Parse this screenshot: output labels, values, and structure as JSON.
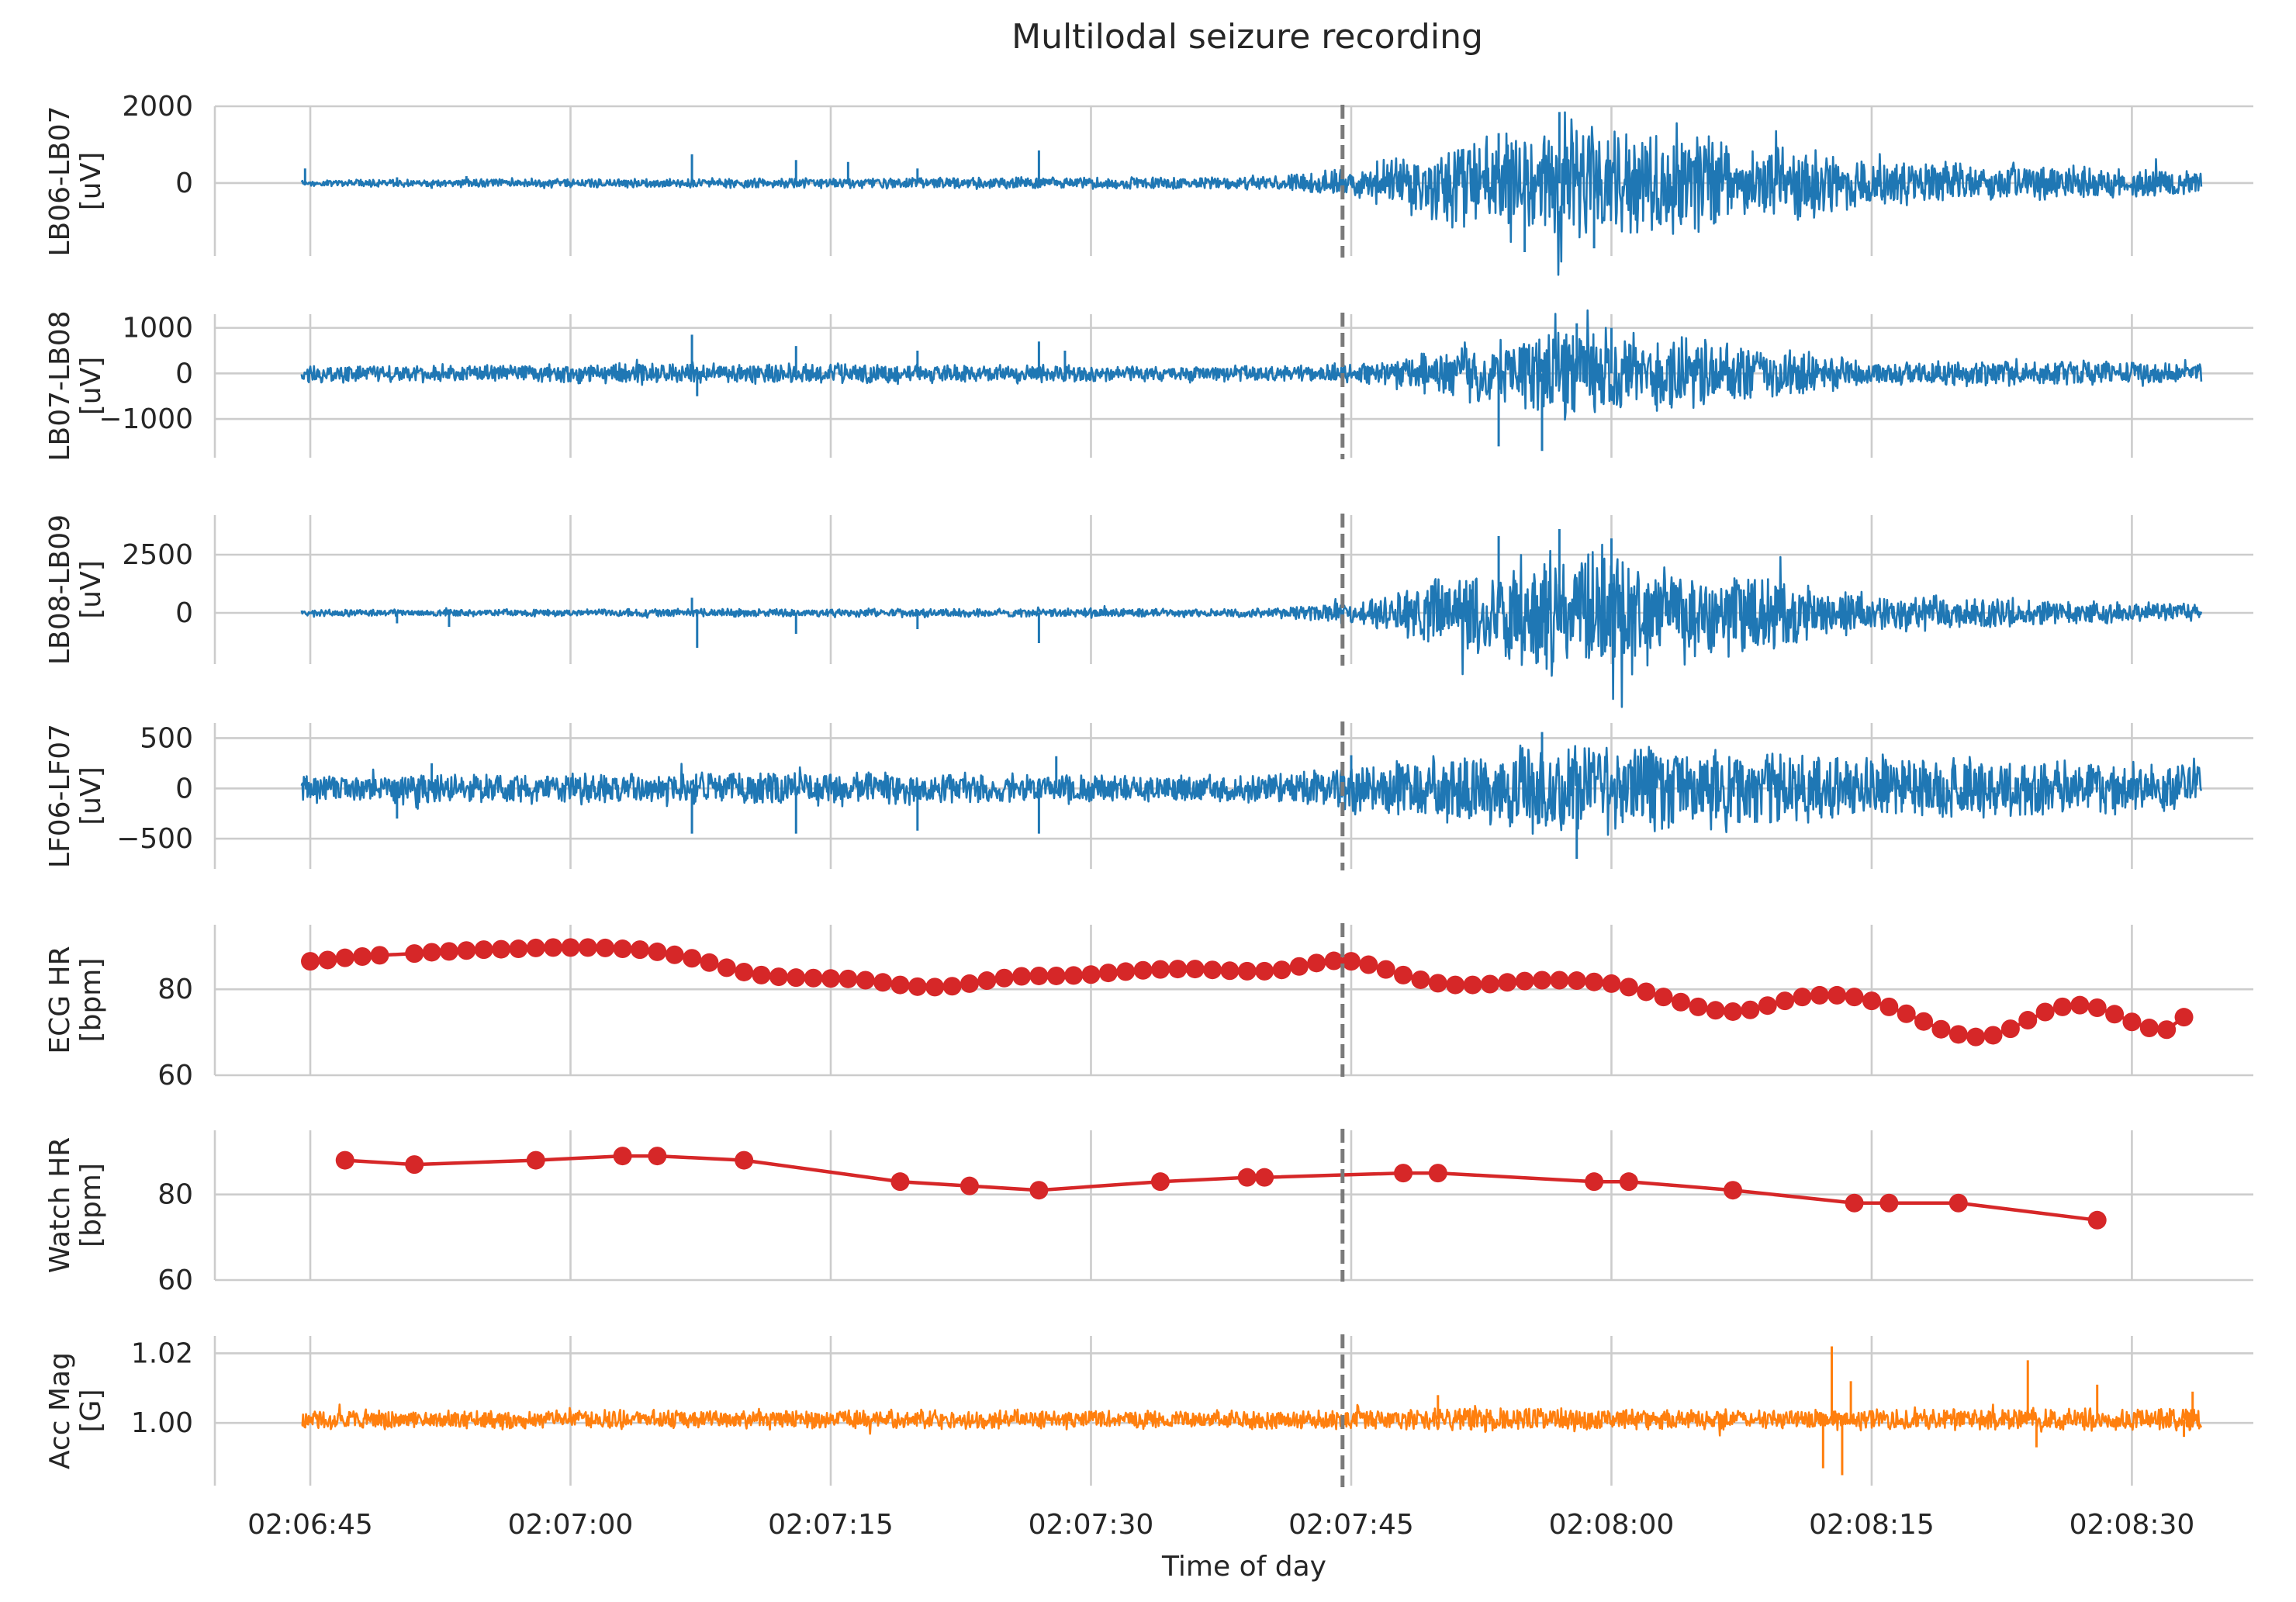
{
  "chart_data": {
    "type": "line",
    "title": "Multilodal seizure recording",
    "xlabel": "Time of day",
    "x_ticks": [
      "02:06:45",
      "02:07:00",
      "02:07:15",
      "02:07:30",
      "02:07:45",
      "02:08:00",
      "02:08:15",
      "02:08:30"
    ],
    "xlim": [
      "02:06:39.5",
      "02:08:37"
    ],
    "onset_time": "02:07:44.5",
    "panels": [
      {
        "name": "LB06-LB07",
        "ylabel": [
          "LB06-LB07",
          "[uV]"
        ],
        "kind": "signal",
        "color": "#1f77b4",
        "ylim": [
          -1900,
          2000
        ],
        "yticks": [
          {
            "value": 2000,
            "label": "2000"
          },
          {
            "value": 0,
            "label": "0"
          }
        ],
        "range": [
          "02:06:44.5",
          "02:08:34"
        ],
        "envelope": [
          [
            "02:06:44.5",
            100
          ],
          [
            "02:07:15",
            150
          ],
          [
            "02:07:40",
            180
          ],
          [
            "02:07:46",
            500
          ],
          [
            "02:07:52",
            1400
          ],
          [
            "02:07:58",
            1800
          ],
          [
            "02:08:05",
            1400
          ],
          [
            "02:08:15",
            700
          ],
          [
            "02:08:34",
            350
          ]
        ],
        "spikes": [
          [
            "02:06:44.7",
            380
          ],
          [
            "02:06:50",
            150
          ],
          [
            "02:06:52",
            -150
          ],
          [
            "02:06:54",
            180
          ],
          [
            "02:07:07",
            750
          ],
          [
            "02:07:13",
            600
          ],
          [
            "02:07:16",
            550
          ],
          [
            "02:07:20",
            380
          ],
          [
            "02:07:27",
            850
          ],
          [
            "02:07:53.5",
            1300
          ],
          [
            "02:07:55",
            -1800
          ],
          [
            "02:07:57",
            1850
          ],
          [
            "02:07:59",
            -1700
          ]
        ]
      },
      {
        "name": "LB07-LB08",
        "ylabel": [
          "LB07-LB08",
          "[uV]"
        ],
        "kind": "signal",
        "color": "#1f77b4",
        "ylim": [
          -1850,
          1300
        ],
        "yticks": [
          {
            "value": 1000,
            "label": "1000"
          },
          {
            "value": 0,
            "label": "0"
          },
          {
            "value": -1000,
            "label": "−1000"
          }
        ],
        "range": [
          "02:06:44.5",
          "02:08:34"
        ],
        "envelope": [
          [
            "02:06:44.5",
            200
          ],
          [
            "02:07:15",
            250
          ],
          [
            "02:07:40",
            180
          ],
          [
            "02:07:46",
            250
          ],
          [
            "02:07:52",
            700
          ],
          [
            "02:07:58",
            1150
          ],
          [
            "02:08:05",
            800
          ],
          [
            "02:08:15",
            300
          ],
          [
            "02:08:34",
            300
          ]
        ],
        "spikes": [
          [
            "02:07:07",
            850
          ],
          [
            "02:07:07.3",
            -500
          ],
          [
            "02:07:13",
            600
          ],
          [
            "02:07:20",
            500
          ],
          [
            "02:07:27",
            700
          ],
          [
            "02:07:28.5",
            500
          ],
          [
            "02:07:53.5",
            -1600
          ],
          [
            "02:07:56",
            -1700
          ],
          [
            "02:07:58",
            1100
          ],
          [
            "02:08:00",
            1000
          ]
        ]
      },
      {
        "name": "LB08-LB09",
        "ylabel": [
          "LB08-LB09",
          "[uV]"
        ],
        "kind": "signal",
        "color": "#1f77b4",
        "ylim": [
          -2200,
          4200
        ],
        "yticks": [
          {
            "value": 2500,
            "label": "2500"
          },
          {
            "value": 0,
            "label": "0"
          }
        ],
        "range": [
          "02:06:44.5",
          "02:08:34"
        ],
        "envelope": [
          [
            "02:06:44.5",
            150
          ],
          [
            "02:07:15",
            200
          ],
          [
            "02:07:40",
            200
          ],
          [
            "02:07:46",
            600
          ],
          [
            "02:07:52",
            2200
          ],
          [
            "02:07:58",
            3200
          ],
          [
            "02:08:05",
            2200
          ],
          [
            "02:08:15",
            900
          ],
          [
            "02:08:34",
            400
          ]
        ],
        "spikes": [
          [
            "02:06:50",
            -450
          ],
          [
            "02:06:53",
            -600
          ],
          [
            "02:07:07",
            650
          ],
          [
            "02:07:07.3",
            -1500
          ],
          [
            "02:07:13",
            -900
          ],
          [
            "02:07:20",
            -700
          ],
          [
            "02:07:27",
            -1300
          ],
          [
            "02:07:53.5",
            3300
          ],
          [
            "02:07:57",
            3600
          ],
          [
            "02:08:00",
            3200
          ]
        ]
      },
      {
        "name": "LF06-LF07",
        "ylabel": [
          "LF06-LF07",
          "[uV]"
        ],
        "kind": "signal",
        "color": "#1f77b4",
        "ylim": [
          -800,
          650
        ],
        "yticks": [
          {
            "value": 500,
            "label": "500"
          },
          {
            "value": 0,
            "label": "0"
          },
          {
            "value": -500,
            "label": "−500"
          }
        ],
        "range": [
          "02:06:44.5",
          "02:08:34"
        ],
        "envelope": [
          [
            "02:06:44.5",
            150
          ],
          [
            "02:07:15",
            180
          ],
          [
            "02:07:40",
            150
          ],
          [
            "02:07:46",
            300
          ],
          [
            "02:07:52",
            400
          ],
          [
            "02:07:58",
            520
          ],
          [
            "02:08:05",
            450
          ],
          [
            "02:08:15",
            350
          ],
          [
            "02:08:34",
            250
          ]
        ],
        "spikes": [
          [
            "02:06:50",
            -300
          ],
          [
            "02:06:52",
            250
          ],
          [
            "02:07:07",
            -450
          ],
          [
            "02:07:13",
            -450
          ],
          [
            "02:07:20",
            -420
          ],
          [
            "02:07:27",
            -450
          ],
          [
            "02:07:28",
            320
          ],
          [
            "02:07:45",
            330
          ],
          [
            "02:07:56",
            560
          ],
          [
            "02:07:58",
            -700
          ]
        ]
      },
      {
        "name": "ECG HR",
        "ylabel": [
          "ECG HR",
          "[bpm]"
        ],
        "kind": "markers",
        "color": "#d62728",
        "ylim": [
          60,
          95
        ],
        "yticks": [
          {
            "value": 80,
            "label": "80"
          },
          {
            "value": 60,
            "label": "60"
          }
        ],
        "points": [
          [
            "02:06:45",
            86.5
          ],
          [
            "02:06:46",
            86.8
          ],
          [
            "02:06:47",
            87.3
          ],
          [
            "02:06:48",
            87.6
          ],
          [
            "02:06:49",
            87.9
          ],
          [
            "02:06:51",
            88.3
          ],
          [
            "02:06:52",
            88.6
          ],
          [
            "02:06:53",
            88.8
          ],
          [
            "02:06:54",
            89.0
          ],
          [
            "02:06:55",
            89.2
          ],
          [
            "02:06:56",
            89.3
          ],
          [
            "02:06:57",
            89.4
          ],
          [
            "02:06:58",
            89.6
          ],
          [
            "02:06:59",
            89.7
          ],
          [
            "02:07:00",
            89.7
          ],
          [
            "02:07:01",
            89.7
          ],
          [
            "02:07:02",
            89.6
          ],
          [
            "02:07:03",
            89.4
          ],
          [
            "02:07:04",
            89.2
          ],
          [
            "02:07:05",
            88.7
          ],
          [
            "02:07:06",
            88.0
          ],
          [
            "02:07:07",
            87.2
          ],
          [
            "02:07:08",
            86.2
          ],
          [
            "02:07:09",
            85.0
          ],
          [
            "02:07:10",
            84.0
          ],
          [
            "02:07:11",
            83.3
          ],
          [
            "02:07:12",
            82.9
          ],
          [
            "02:07:13",
            82.7
          ],
          [
            "02:07:14",
            82.6
          ],
          [
            "02:07:15",
            82.5
          ],
          [
            "02:07:16",
            82.4
          ],
          [
            "02:07:17",
            82.1
          ],
          [
            "02:07:18",
            81.6
          ],
          [
            "02:07:19",
            81.0
          ],
          [
            "02:07:20",
            80.6
          ],
          [
            "02:07:21",
            80.5
          ],
          [
            "02:07:22",
            80.7
          ],
          [
            "02:07:23",
            81.3
          ],
          [
            "02:07:24",
            82.0
          ],
          [
            "02:07:25",
            82.6
          ],
          [
            "02:07:26",
            83.0
          ],
          [
            "02:07:27",
            83.1
          ],
          [
            "02:07:28",
            83.1
          ],
          [
            "02:07:29",
            83.2
          ],
          [
            "02:07:30",
            83.4
          ],
          [
            "02:07:31",
            83.8
          ],
          [
            "02:07:32",
            84.1
          ],
          [
            "02:07:33",
            84.4
          ],
          [
            "02:07:34",
            84.6
          ],
          [
            "02:07:35",
            84.7
          ],
          [
            "02:07:36",
            84.7
          ],
          [
            "02:07:37",
            84.5
          ],
          [
            "02:07:38",
            84.3
          ],
          [
            "02:07:39",
            84.2
          ],
          [
            "02:07:40",
            84.2
          ],
          [
            "02:07:41",
            84.5
          ],
          [
            "02:07:42",
            85.3
          ],
          [
            "02:07:43",
            86.1
          ],
          [
            "02:07:44",
            86.6
          ],
          [
            "02:07:45",
            86.5
          ],
          [
            "02:07:46",
            85.7
          ],
          [
            "02:07:47",
            84.6
          ],
          [
            "02:07:48",
            83.3
          ],
          [
            "02:07:49",
            82.2
          ],
          [
            "02:07:50",
            81.4
          ],
          [
            "02:07:51",
            81.0
          ],
          [
            "02:07:52",
            81.0
          ],
          [
            "02:07:53",
            81.2
          ],
          [
            "02:07:54",
            81.6
          ],
          [
            "02:07:55",
            81.9
          ],
          [
            "02:07:56",
            82.1
          ],
          [
            "02:07:57",
            82.1
          ],
          [
            "02:07:58",
            82.0
          ],
          [
            "02:07:59",
            81.7
          ],
          [
            "02:08:00",
            81.3
          ],
          [
            "02:08:01",
            80.5
          ],
          [
            "02:08:02",
            79.4
          ],
          [
            "02:08:03",
            78.2
          ],
          [
            "02:08:04",
            77.0
          ],
          [
            "02:08:05",
            75.9
          ],
          [
            "02:08:06",
            75.1
          ],
          [
            "02:08:07",
            74.8
          ],
          [
            "02:08:08",
            75.2
          ],
          [
            "02:08:09",
            76.2
          ],
          [
            "02:08:10",
            77.3
          ],
          [
            "02:08:11",
            78.2
          ],
          [
            "02:08:12",
            78.6
          ],
          [
            "02:08:13",
            78.6
          ],
          [
            "02:08:14",
            78.2
          ],
          [
            "02:08:15",
            77.3
          ],
          [
            "02:08:16",
            75.9
          ],
          [
            "02:08:17",
            74.3
          ],
          [
            "02:08:18",
            72.5
          ],
          [
            "02:08:19",
            70.7
          ],
          [
            "02:08:20",
            69.5
          ],
          [
            "02:08:21",
            68.9
          ],
          [
            "02:08:22",
            69.3
          ],
          [
            "02:08:23",
            70.8
          ],
          [
            "02:08:24",
            72.8
          ],
          [
            "02:08:25",
            74.7
          ],
          [
            "02:08:26",
            75.9
          ],
          [
            "02:08:27",
            76.3
          ],
          [
            "02:08:28",
            75.7
          ],
          [
            "02:08:29",
            74.2
          ],
          [
            "02:08:30",
            72.4
          ],
          [
            "02:08:31",
            71.0
          ],
          [
            "02:08:32",
            70.6
          ],
          [
            "02:08:33",
            73.5
          ]
        ]
      },
      {
        "name": "Watch HR",
        "ylabel": [
          "Watch HR",
          "[bpm]"
        ],
        "kind": "markers",
        "color": "#d62728",
        "ylim": [
          60,
          95
        ],
        "yticks": [
          {
            "value": 80,
            "label": "80"
          },
          {
            "value": 60,
            "label": "60"
          }
        ],
        "points": [
          [
            "02:06:47",
            88
          ],
          [
            "02:06:51",
            87
          ],
          [
            "02:06:58",
            88
          ],
          [
            "02:07:03",
            89
          ],
          [
            "02:07:05",
            89
          ],
          [
            "02:07:10",
            88
          ],
          [
            "02:07:19",
            83
          ],
          [
            "02:07:23",
            82
          ],
          [
            "02:07:27",
            81
          ],
          [
            "02:07:34",
            83
          ],
          [
            "02:07:39",
            84
          ],
          [
            "02:07:40",
            84
          ],
          [
            "02:07:48",
            85
          ],
          [
            "02:07:50",
            85
          ],
          [
            "02:07:59",
            83
          ],
          [
            "02:08:01",
            83
          ],
          [
            "02:08:07",
            81
          ],
          [
            "02:08:14",
            78
          ],
          [
            "02:08:16",
            78
          ],
          [
            "02:08:20",
            78
          ],
          [
            "02:08:28",
            74
          ]
        ]
      },
      {
        "name": "Acc Mag",
        "ylabel": [
          "Acc Mag",
          "[G]"
        ],
        "kind": "signal",
        "color": "#ff7f0e",
        "ylim": [
          0.982,
          1.025
        ],
        "baseline": 1.001,
        "yticks": [
          {
            "value": 1.02,
            "label": "1.02"
          },
          {
            "value": 1.0,
            "label": "1.00"
          }
        ],
        "range": [
          "02:06:44.5",
          "02:08:34"
        ],
        "envelope": [
          [
            "02:06:44.5",
            0.003
          ],
          [
            "02:07:46",
            0.003
          ],
          [
            "02:07:52",
            0.004
          ],
          [
            "02:08:10",
            0.003
          ],
          [
            "02:08:34",
            0.004
          ]
        ],
        "spikes": [
          [
            "02:07:50",
            1.008
          ],
          [
            "02:08:12.2",
            0.987
          ],
          [
            "02:08:12.7",
            1.022
          ],
          [
            "02:08:13.3",
            0.985
          ],
          [
            "02:08:13.8",
            1.012
          ],
          [
            "02:08:24",
            1.018
          ],
          [
            "02:08:24.5",
            0.993
          ],
          [
            "02:08:28",
            1.011
          ],
          [
            "02:08:33",
            0.996
          ],
          [
            "02:08:33.5",
            1.009
          ]
        ]
      }
    ]
  }
}
